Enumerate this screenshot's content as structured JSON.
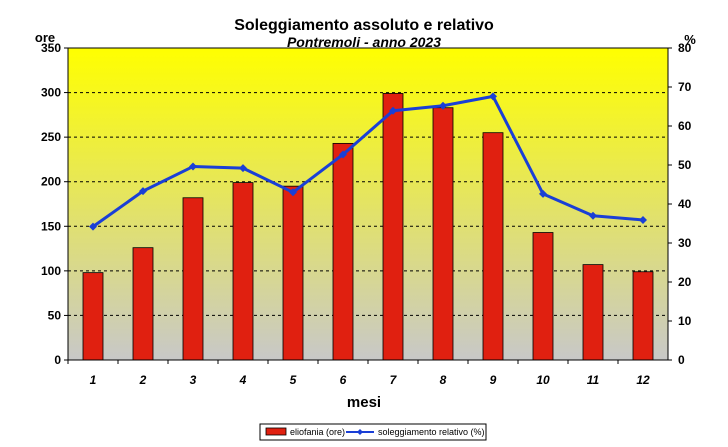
{
  "chart_data": {
    "type": "bar",
    "title": "Soleggiamento assoluto e relativo",
    "subtitle": "Pontremoli - anno 2023",
    "xlabel": "mesi",
    "ylabel": "ore",
    "y2label": "%",
    "categories": [
      "1",
      "2",
      "3",
      "4",
      "5",
      "6",
      "7",
      "8",
      "9",
      "10",
      "11",
      "12"
    ],
    "ylim": [
      0,
      350
    ],
    "y2lim": [
      0,
      80
    ],
    "yticks": [
      0,
      50,
      100,
      150,
      200,
      250,
      300,
      350
    ],
    "y2ticks": [
      0,
      10,
      20,
      30,
      40,
      50,
      60,
      70,
      80
    ],
    "grid": true,
    "legend_position": "bottom",
    "series": [
      {
        "name": "eliofania (ore)",
        "type": "bar",
        "axis": "left",
        "color": "#e02010",
        "values": [
          98,
          126,
          182,
          199,
          195,
          243,
          299,
          283,
          255,
          143,
          107,
          99
        ]
      },
      {
        "name": "soleggiamento relativo (%)",
        "type": "line",
        "axis": "right",
        "color": "#1a3fd6",
        "values": [
          34.2,
          43.3,
          49.6,
          49.2,
          43.0,
          52.7,
          63.9,
          65.2,
          67.6,
          42.6,
          37.0,
          35.9
        ]
      }
    ],
    "colors": {
      "background_top": "#ffff00",
      "background_bottom": "#c8c8c8",
      "gridline": "#000000"
    }
  }
}
